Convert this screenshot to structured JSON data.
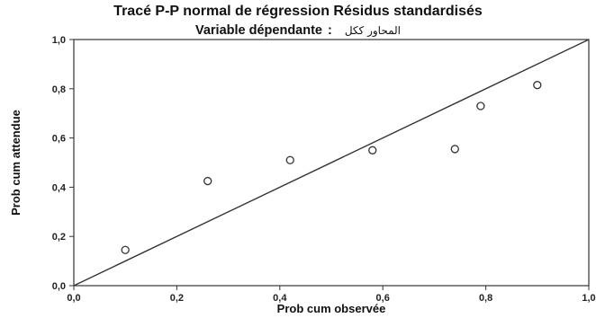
{
  "chart_data": {
    "type": "scatter",
    "title": "Tracé P-P normal de régression Résidus standardisés",
    "subtitle_label": "Variable dépendante",
    "subtitle_separator": ":",
    "subtitle_variable": "المحاور ككل",
    "xlabel": "Prob cum observée",
    "ylabel": "Prob cum attendue",
    "xlim": [
      0,
      1
    ],
    "ylim": [
      0,
      1
    ],
    "x_ticks": [
      "0,0",
      "0,2",
      "0,4",
      "0,6",
      "0,8",
      "1,0"
    ],
    "y_ticks": [
      "0,0",
      "0,2",
      "0,4",
      "0,6",
      "0,8",
      "1,0"
    ],
    "reference_line": {
      "from": [
        0,
        0
      ],
      "to": [
        1,
        1
      ]
    },
    "grid": false,
    "points": [
      {
        "x": 0.1,
        "y": 0.145
      },
      {
        "x": 0.26,
        "y": 0.425
      },
      {
        "x": 0.42,
        "y": 0.51
      },
      {
        "x": 0.58,
        "y": 0.55
      },
      {
        "x": 0.74,
        "y": 0.555
      },
      {
        "x": 0.79,
        "y": 0.73
      },
      {
        "x": 0.9,
        "y": 0.815
      }
    ],
    "marker": "hollow-circle",
    "colors": {
      "frame": "#333333",
      "line": "#333333",
      "marker": "#333333"
    }
  }
}
